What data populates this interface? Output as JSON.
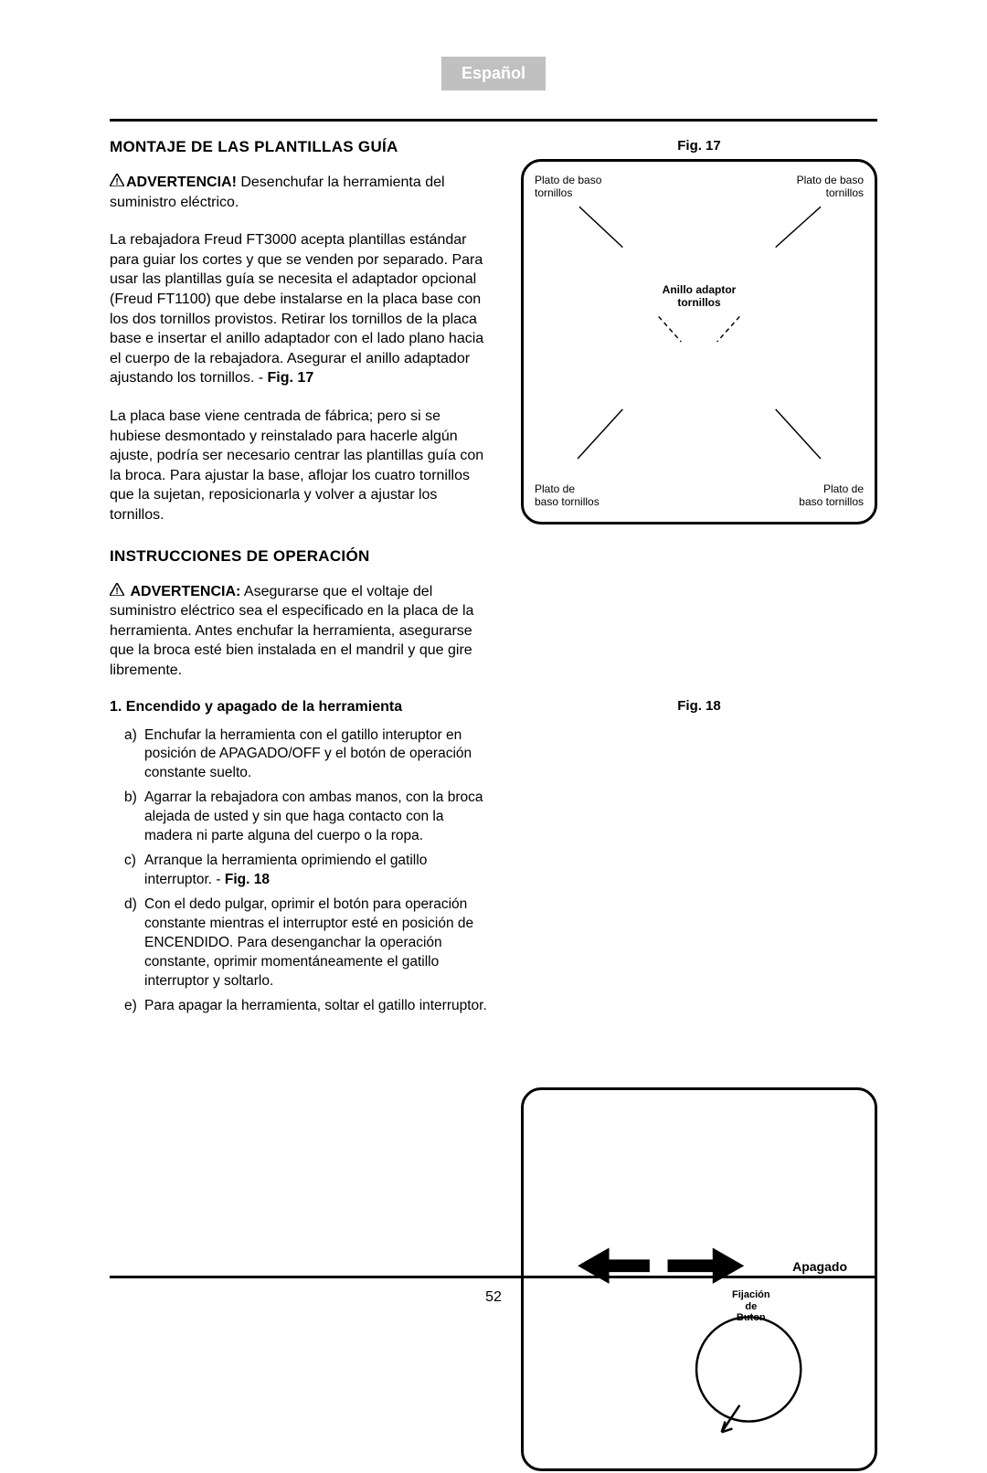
{
  "language_tab": "Español",
  "section1_title": "MONTAJE DE LAS PLANTILLAS GUÍA",
  "warning1_label": "ADVERTENCIA!",
  "warning1_text": " Desenchufar la herramienta del suministro eléctrico.",
  "paragraph1": "La rebajadora Freud FT3000 acepta plantillas estándar para guiar los cortes y que se venden por separado. Para usar las plantillas guía se necesita el adaptador opcional (Freud FT1100) que debe instalarse en la placa base con los dos tornillos provistos. Retirar los tornillos de la placa base e insertar el anillo adaptador con el lado plano hacia el cuerpo de la rebajadora. Asegurar el anillo adaptador ajustando los tornillos. - ",
  "paragraph1_figref": "Fig. 17",
  "paragraph2": "La placa base viene centrada de fábrica; pero si se hubiese desmontado y reinstalado para hacerle algún ajuste, podría ser necesario centrar las plantillas guía con la broca. Para ajustar la base, aflojar los cuatro tornillos que la sujetan, reposicionarla y volver a ajustar los tornillos.",
  "section2_title": "INSTRUCCIONES DE OPERACIÓN",
  "warning2_label": "ADVERTENCIA:",
  "warning2_text": " Asegurarse que el voltaje del suministro eléctrico sea el especificado en la placa de la herramienta. Antes enchufar la herramienta, asegurarse que la broca esté bien instalada en el mandril y que gire libremente.",
  "subhead1": "1. Encendido y apagado de la herramienta",
  "steps": [
    {
      "m": "a)",
      "t": "Enchufar la herramienta con el gatillo interuptor en posición de APAGADO/OFF y el botón de operación constante suelto."
    },
    {
      "m": "b)",
      "t": "Agarrar la rebajadora con ambas manos, con la broca alejada de usted y sin que haga contacto con la madera ni parte alguna del cuerpo o la ropa."
    },
    {
      "m": "c)",
      "t": "Arranque la herramienta oprimiendo el gatillo interruptor. - ",
      "fig": "Fig. 18"
    },
    {
      "m": "d)",
      "t": "Con el dedo pulgar, oprimir el botón para operación constante mientras el interruptor esté en posición de ENCENDIDO. Para desenganchar la operación constante, oprimir momentáneamente el gatillo interruptor y soltarlo."
    },
    {
      "m": "e)",
      "t": "Para apagar la herramienta, soltar el gatillo interruptor."
    }
  ],
  "fig17": {
    "label": "Fig. 17",
    "top_left": "Plato de baso\ntornillos",
    "top_right": "Plato de baso\ntornillos",
    "center": "Anillo adaptor\ntornillos",
    "bottom_left": "Plato de\nbaso tornillos",
    "bottom_right": "Plato de\nbaso tornillos"
  },
  "fig18": {
    "label": "Fig. 18",
    "apagado": "Apagado",
    "fijacion": "Fijación\nde\nButon"
  },
  "page_number": "52",
  "colors": {
    "tab_bg": "#c0c0c0",
    "tab_fg": "#ffffff",
    "text": "#000000",
    "bg": "#ffffff"
  }
}
